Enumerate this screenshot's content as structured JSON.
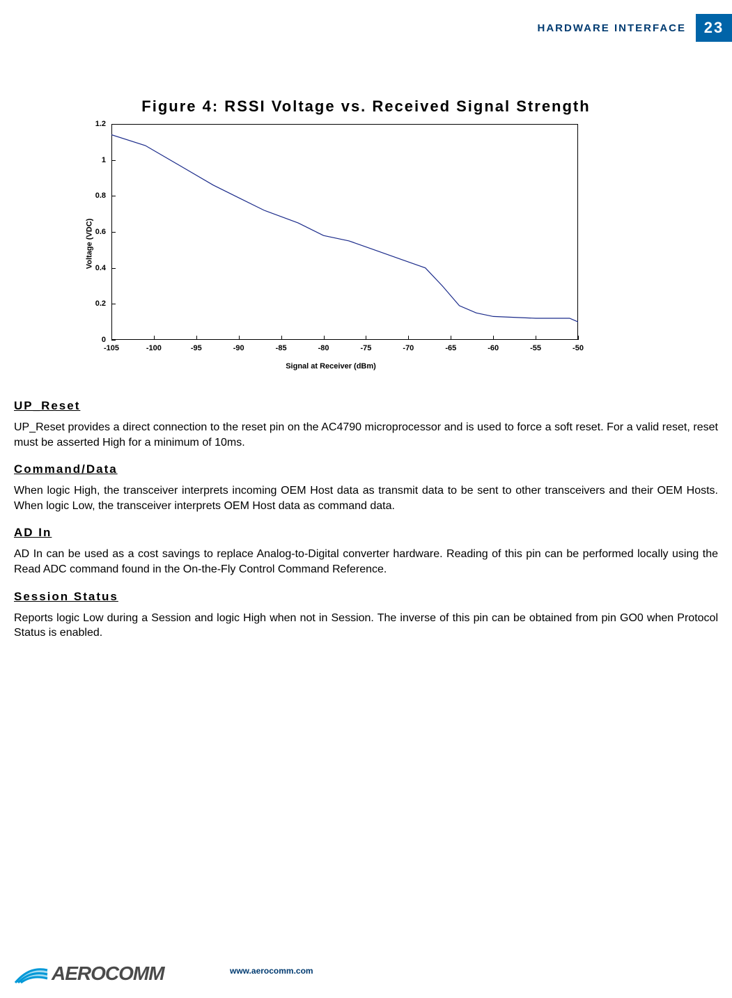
{
  "header": {
    "title": "HARDWARE INTERFACE",
    "page_number": "23",
    "page_box_bg": "#0064a8",
    "title_color": "#003b71"
  },
  "figure": {
    "caption": "Figure 4: RSSI Voltage vs. Received Signal Strength",
    "chart": {
      "type": "line",
      "xlabel": "Signal at Receiver (dBm)",
      "ylabel": "Voltage (VDC)",
      "xlim": [
        -105,
        -50
      ],
      "ylim": [
        0,
        1.2
      ],
      "xtick_step": 5,
      "ytick_step": 0.2,
      "xtick_labels": [
        "-105",
        "-100",
        "-95",
        "-90",
        "-85",
        "-80",
        "-75",
        "-70",
        "-65",
        "-60",
        "-55",
        "-50"
      ],
      "ytick_labels": [
        "0",
        "0.2",
        "0.4",
        "0.6",
        "0.8",
        "1",
        "1.2"
      ],
      "line_color": "#1a2a8a",
      "line_width": 1.2,
      "background_color": "#ffffff",
      "border_color": "#000000",
      "label_fontsize": 11,
      "data_points": [
        {
          "x": -105,
          "y": 1.14
        },
        {
          "x": -101,
          "y": 1.08
        },
        {
          "x": -97,
          "y": 0.97
        },
        {
          "x": -93,
          "y": 0.86
        },
        {
          "x": -90,
          "y": 0.79
        },
        {
          "x": -87,
          "y": 0.72
        },
        {
          "x": -83,
          "y": 0.65
        },
        {
          "x": -80,
          "y": 0.58
        },
        {
          "x": -77,
          "y": 0.55
        },
        {
          "x": -74,
          "y": 0.5
        },
        {
          "x": -71,
          "y": 0.45
        },
        {
          "x": -68,
          "y": 0.4
        },
        {
          "x": -66,
          "y": 0.3
        },
        {
          "x": -64,
          "y": 0.19
        },
        {
          "x": -62,
          "y": 0.15
        },
        {
          "x": -60,
          "y": 0.13
        },
        {
          "x": -55,
          "y": 0.12
        },
        {
          "x": -51,
          "y": 0.12
        },
        {
          "x": -50,
          "y": 0.1
        }
      ]
    }
  },
  "sections": [
    {
      "heading": "UP_Reset",
      "body": "UP_Reset provides a direct connection to the reset pin on the AC4790 microprocessor and is used to force a soft reset.  For a valid reset, reset must be asserted High for a minimum of 10ms."
    },
    {
      "heading": "Command/Data",
      "body": "When logic High, the transceiver interprets incoming OEM Host data as transmit data to be sent to other transceivers and their OEM Hosts. When logic Low, the transceiver interprets OEM Host data as command data."
    },
    {
      "heading": "AD In",
      "body": "AD In can be used as a cost savings to replace Analog-to-Digital converter hardware.  Reading of this pin can be performed locally using the Read ADC command found in the On-the-Fly Control Command Reference."
    },
    {
      "heading": "Session Status",
      "body": "Reports logic Low during a Session and logic High when not in Session.  The inverse of this pin can be obtained from pin GO0 when Protocol Status is enabled."
    }
  ],
  "footer": {
    "brand": "AEROCOMM",
    "url": "www.aerocomm.com",
    "brand_color_primary": "#005a9c",
    "brand_color_accent": "#003b71"
  }
}
